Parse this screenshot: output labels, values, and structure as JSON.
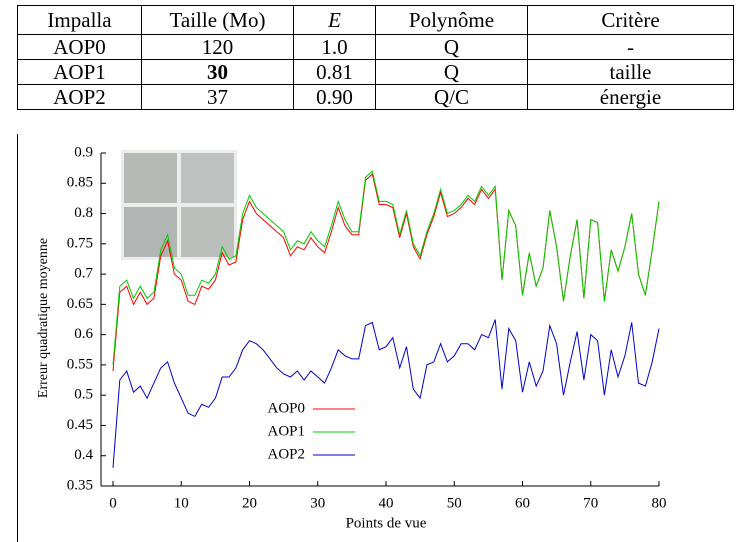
{
  "table": {
    "header": [
      "Impalla",
      "Taille (Mo)",
      "E",
      "Polynôme",
      "Critère"
    ],
    "rows": [
      [
        "AOP0",
        "120",
        "1.0",
        "Q",
        "-"
      ],
      [
        "AOP1",
        "30",
        "0.81",
        "Q",
        "taille"
      ],
      [
        "AOP2",
        "37",
        "0.90",
        "Q/C",
        "énergie"
      ]
    ]
  },
  "chart_data": {
    "type": "line",
    "x_label": "Points de vue",
    "y_label": "Erreur quadratique moyenne",
    "x": [
      0,
      1,
      2,
      3,
      4,
      5,
      6,
      7,
      8,
      9,
      10,
      11,
      12,
      13,
      14,
      15,
      16,
      17,
      18,
      19,
      20,
      21,
      22,
      23,
      24,
      25,
      26,
      27,
      28,
      29,
      30,
      31,
      32,
      33,
      34,
      35,
      36,
      37,
      38,
      39,
      40,
      41,
      42,
      43,
      44,
      45,
      46,
      47,
      48,
      49,
      50,
      51,
      52,
      53,
      54,
      55,
      56,
      57,
      58,
      59,
      60,
      61,
      62,
      63,
      64,
      65,
      66,
      67,
      68,
      69,
      70,
      71,
      72,
      73,
      74,
      75,
      76,
      77,
      78,
      79,
      80
    ],
    "series": [
      {
        "name": "AOP0",
        "color": "#ff0000",
        "values": [
          0.54,
          0.67,
          0.68,
          0.65,
          0.67,
          0.65,
          0.66,
          0.73,
          0.755,
          0.7,
          0.69,
          0.655,
          0.65,
          0.68,
          0.675,
          0.69,
          0.735,
          0.715,
          0.72,
          0.79,
          0.82,
          0.8,
          0.79,
          0.78,
          0.77,
          0.76,
          0.73,
          0.745,
          0.74,
          0.76,
          0.745,
          0.735,
          0.77,
          0.81,
          0.78,
          0.765,
          0.765,
          0.855,
          0.865,
          0.815,
          0.815,
          0.81,
          0.76,
          0.8,
          0.745,
          0.725,
          0.765,
          0.795,
          0.835,
          0.795,
          0.8,
          0.81,
          0.825,
          0.815,
          0.84,
          0.825,
          0.84,
          0.69,
          0.805,
          0.78,
          0.665,
          0.735,
          0.68,
          0.71,
          0.805,
          0.745,
          0.655,
          0.73,
          0.79,
          0.66,
          0.79,
          0.785,
          0.655,
          0.74,
          0.705,
          0.745,
          0.8,
          0.7,
          0.665,
          0.74,
          0.82
        ]
      },
      {
        "name": "AOP1",
        "color": "#00cc00",
        "values": [
          0.55,
          0.68,
          0.69,
          0.66,
          0.68,
          0.66,
          0.67,
          0.74,
          0.765,
          0.71,
          0.7,
          0.665,
          0.665,
          0.69,
          0.685,
          0.7,
          0.745,
          0.725,
          0.73,
          0.8,
          0.83,
          0.81,
          0.8,
          0.79,
          0.78,
          0.77,
          0.74,
          0.755,
          0.75,
          0.77,
          0.755,
          0.745,
          0.78,
          0.82,
          0.79,
          0.77,
          0.77,
          0.86,
          0.87,
          0.82,
          0.82,
          0.815,
          0.765,
          0.805,
          0.75,
          0.73,
          0.77,
          0.8,
          0.84,
          0.8,
          0.805,
          0.815,
          0.83,
          0.82,
          0.845,
          0.83,
          0.845,
          0.69,
          0.805,
          0.78,
          0.665,
          0.735,
          0.68,
          0.71,
          0.805,
          0.745,
          0.655,
          0.73,
          0.79,
          0.66,
          0.79,
          0.785,
          0.655,
          0.74,
          0.705,
          0.745,
          0.8,
          0.7,
          0.665,
          0.74,
          0.82
        ]
      },
      {
        "name": "AOP2",
        "color": "#0000cc",
        "values": [
          0.38,
          0.525,
          0.54,
          0.505,
          0.515,
          0.495,
          0.52,
          0.545,
          0.555,
          0.52,
          0.495,
          0.47,
          0.465,
          0.485,
          0.48,
          0.495,
          0.53,
          0.53,
          0.545,
          0.575,
          0.59,
          0.585,
          0.575,
          0.56,
          0.545,
          0.535,
          0.53,
          0.54,
          0.525,
          0.54,
          0.53,
          0.52,
          0.545,
          0.575,
          0.565,
          0.56,
          0.56,
          0.615,
          0.62,
          0.575,
          0.58,
          0.595,
          0.545,
          0.58,
          0.51,
          0.495,
          0.55,
          0.555,
          0.585,
          0.555,
          0.565,
          0.585,
          0.585,
          0.575,
          0.6,
          0.595,
          0.625,
          0.51,
          0.61,
          0.59,
          0.505,
          0.555,
          0.515,
          0.54,
          0.615,
          0.585,
          0.5,
          0.555,
          0.605,
          0.525,
          0.6,
          0.59,
          0.5,
          0.575,
          0.53,
          0.565,
          0.62,
          0.52,
          0.515,
          0.555,
          0.61
        ]
      }
    ],
    "xlim": [
      0,
      80
    ],
    "xticks": [
      0,
      10,
      20,
      30,
      40,
      50,
      60,
      70,
      80
    ],
    "ylim": [
      0.35,
      0.9
    ],
    "yticks": [
      0.35,
      0.4,
      0.45,
      0.5,
      0.55,
      0.6,
      0.65,
      0.7,
      0.75,
      0.8,
      0.85,
      0.9
    ]
  }
}
